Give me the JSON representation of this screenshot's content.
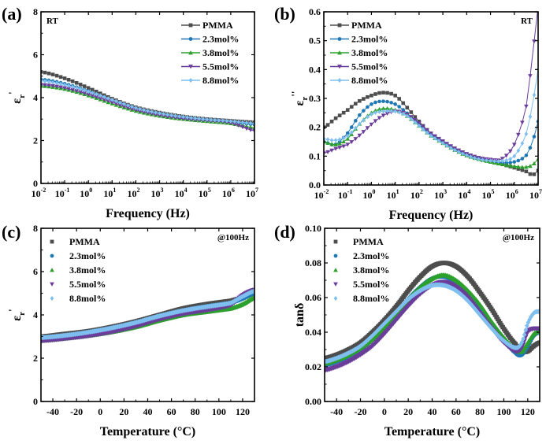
{
  "chart_data": [
    {
      "id": "a",
      "type": "line",
      "panel_label": "(a)",
      "annotation": "RT",
      "annotation_position": "top-left",
      "xlabel": "Frequency (Hz)",
      "ylabel": "ε_r'",
      "xscale": "log",
      "xlim": [
        0.01,
        10000000
      ],
      "ylim": [
        0,
        8
      ],
      "xticks": [
        "-2",
        "-1",
        "0",
        "1",
        "2",
        "3",
        "4",
        "5",
        "6",
        "7"
      ],
      "xtick_base": "10",
      "yticks": [
        0,
        2,
        4,
        6,
        8
      ],
      "legend_position": "top-right",
      "legend_style": "line-marker",
      "x": [
        0.01,
        0.1,
        1,
        10,
        100,
        1000,
        10000,
        100000,
        1000000,
        10000000
      ],
      "series": [
        {
          "name": "PMMA",
          "color": "#4d4d4d",
          "marker": "square",
          "values": [
            5.2,
            4.9,
            4.45,
            3.95,
            3.55,
            3.3,
            3.12,
            3.0,
            2.92,
            2.85
          ]
        },
        {
          "name": "2.3mol%",
          "color": "#1f77b4",
          "marker": "circle",
          "values": [
            4.85,
            4.65,
            4.3,
            3.88,
            3.5,
            3.25,
            3.08,
            2.97,
            2.87,
            2.75
          ]
        },
        {
          "name": "3.8mol%",
          "color": "#2ca02c",
          "marker": "triangle-up",
          "values": [
            4.55,
            4.4,
            4.1,
            3.72,
            3.38,
            3.15,
            3.0,
            2.9,
            2.8,
            2.6
          ]
        },
        {
          "name": "5.5mol%",
          "color": "#6a3d9a",
          "marker": "triangle-down",
          "values": [
            4.6,
            4.45,
            4.15,
            3.78,
            3.42,
            3.18,
            3.02,
            2.92,
            2.82,
            2.45
          ]
        },
        {
          "name": "8.8mol%",
          "color": "#7fbfef",
          "marker": "diamond",
          "values": [
            4.78,
            4.6,
            4.28,
            3.9,
            3.52,
            3.27,
            3.1,
            2.98,
            2.9,
            2.8
          ]
        }
      ]
    },
    {
      "id": "b",
      "type": "line",
      "panel_label": "(b)",
      "annotation": "RT",
      "annotation_position": "top-right",
      "xlabel": "Frequency (Hz)",
      "ylabel": "ε_r''",
      "xscale": "log",
      "xlim": [
        0.01,
        10000000
      ],
      "ylim": [
        0,
        0.6
      ],
      "xticks": [
        "-2",
        "-1",
        "0",
        "1",
        "2",
        "3",
        "4",
        "5",
        "6",
        "7"
      ],
      "xtick_base": "10",
      "yticks": [
        "0.0",
        "0.1",
        "0.2",
        "0.3",
        "0.4",
        "0.5",
        "0.6"
      ],
      "legend_position": "top-left",
      "legend_style": "line-marker",
      "x": [
        0.01,
        0.03,
        0.1,
        0.3,
        1,
        3,
        10,
        30,
        100,
        300,
        1000,
        3000,
        10000,
        30000,
        100000,
        300000,
        1000000,
        3000000,
        6000000,
        10000000
      ],
      "series": [
        {
          "name": "PMMA",
          "color": "#4d4d4d",
          "marker": "square",
          "values": [
            0.2,
            0.23,
            0.26,
            0.29,
            0.31,
            0.32,
            0.31,
            0.27,
            0.22,
            0.18,
            0.15,
            0.125,
            0.105,
            0.092,
            0.082,
            0.072,
            0.06,
            0.048,
            0.035,
            0.05
          ]
        },
        {
          "name": "2.3mol%",
          "color": "#1f77b4",
          "marker": "circle",
          "values": [
            0.15,
            0.14,
            0.18,
            0.24,
            0.28,
            0.29,
            0.28,
            0.25,
            0.21,
            0.175,
            0.148,
            0.125,
            0.105,
            0.092,
            0.083,
            0.077,
            0.08,
            0.1,
            0.15,
            0.22
          ]
        },
        {
          "name": "3.8mol%",
          "color": "#2ca02c",
          "marker": "triangle-up",
          "values": [
            0.15,
            0.14,
            0.16,
            0.21,
            0.25,
            0.265,
            0.26,
            0.24,
            0.205,
            0.172,
            0.145,
            0.122,
            0.102,
            0.09,
            0.08,
            0.072,
            0.065,
            0.062,
            0.07,
            0.09
          ]
        },
        {
          "name": "5.5mol%",
          "color": "#6a3d9a",
          "marker": "triangle-down",
          "values": [
            0.11,
            0.125,
            0.14,
            0.17,
            0.21,
            0.24,
            0.255,
            0.245,
            0.215,
            0.18,
            0.152,
            0.128,
            0.108,
            0.095,
            0.088,
            0.09,
            0.14,
            0.26,
            0.45,
            0.62
          ]
        },
        {
          "name": "8.8mol%",
          "color": "#7fbfef",
          "marker": "diamond",
          "values": [
            0.16,
            0.155,
            0.17,
            0.21,
            0.245,
            0.255,
            0.255,
            0.24,
            0.205,
            0.172,
            0.145,
            0.122,
            0.103,
            0.09,
            0.084,
            0.083,
            0.1,
            0.17,
            0.28,
            0.4
          ]
        }
      ]
    },
    {
      "id": "c",
      "type": "scatter",
      "panel_label": "(c)",
      "annotation": "@100Hz",
      "annotation_position": "top-right",
      "xlabel": "Temperature (°C)",
      "ylabel": "ε_r'",
      "xlim": [
        -50,
        130
      ],
      "ylim": [
        0,
        8
      ],
      "xticks": [
        -40,
        -20,
        0,
        20,
        40,
        60,
        80,
        100,
        120
      ],
      "yticks": [
        0,
        2,
        4,
        6,
        8
      ],
      "legend_position": "top-left",
      "legend_style": "marker-only",
      "x": [
        -50,
        -30,
        -10,
        10,
        30,
        50,
        70,
        90,
        110,
        120,
        130
      ],
      "series": [
        {
          "name": "PMMA",
          "color": "#4d4d4d",
          "marker": "square",
          "values": [
            3.0,
            3.12,
            3.25,
            3.45,
            3.7,
            4.0,
            4.3,
            4.5,
            4.65,
            4.8,
            5.0
          ]
        },
        {
          "name": "2.3mol%",
          "color": "#1f77b4",
          "marker": "circle",
          "values": [
            2.95,
            3.05,
            3.2,
            3.4,
            3.65,
            3.95,
            4.2,
            4.4,
            4.55,
            4.75,
            5.0
          ]
        },
        {
          "name": "3.8mol%",
          "color": "#2ca02c",
          "marker": "triangle-up",
          "values": [
            2.82,
            2.92,
            3.05,
            3.22,
            3.45,
            3.75,
            4.0,
            4.15,
            4.3,
            4.5,
            4.8
          ]
        },
        {
          "name": "5.5mol%",
          "color": "#6a3d9a",
          "marker": "triangle-down",
          "values": [
            2.8,
            2.9,
            3.03,
            3.22,
            3.48,
            3.8,
            4.05,
            4.22,
            4.45,
            4.9,
            5.15
          ]
        },
        {
          "name": "8.8mol%",
          "color": "#7fbfef",
          "marker": "diamond",
          "values": [
            2.95,
            3.05,
            3.2,
            3.4,
            3.65,
            3.95,
            4.2,
            4.38,
            4.55,
            4.85,
            5.1
          ]
        }
      ]
    },
    {
      "id": "d",
      "type": "scatter",
      "panel_label": "(d)",
      "annotation": "@100Hz",
      "annotation_position": "top-right",
      "xlabel": "Temperature (°C)",
      "ylabel": "tanδ",
      "xlim": [
        -50,
        130
      ],
      "ylim": [
        0,
        0.1
      ],
      "xticks": [
        -40,
        -20,
        0,
        20,
        40,
        60,
        80,
        100,
        120
      ],
      "yticks": [
        "0.00",
        "0.02",
        "0.04",
        "0.06",
        "0.08",
        "0.10"
      ],
      "legend_position": "top-left",
      "legend_style": "marker-only",
      "x": [
        -50,
        -40,
        -30,
        -20,
        -10,
        0,
        10,
        20,
        30,
        40,
        50,
        60,
        70,
        80,
        90,
        100,
        110,
        115,
        120,
        125,
        130
      ],
      "series": [
        {
          "name": "PMMA",
          "color": "#4d4d4d",
          "marker": "square",
          "values": [
            0.025,
            0.027,
            0.03,
            0.034,
            0.04,
            0.047,
            0.055,
            0.064,
            0.072,
            0.078,
            0.08,
            0.078,
            0.072,
            0.063,
            0.053,
            0.042,
            0.033,
            0.029,
            0.029,
            0.032,
            0.034
          ]
        },
        {
          "name": "2.3mol%",
          "color": "#1f77b4",
          "marker": "circle",
          "values": [
            0.021,
            0.023,
            0.026,
            0.03,
            0.036,
            0.043,
            0.051,
            0.059,
            0.066,
            0.071,
            0.072,
            0.069,
            0.063,
            0.054,
            0.045,
            0.036,
            0.028,
            0.027,
            0.032,
            0.038,
            0.04
          ]
        },
        {
          "name": "3.8mol%",
          "color": "#2ca02c",
          "marker": "triangle-up",
          "values": [
            0.022,
            0.024,
            0.027,
            0.031,
            0.036,
            0.043,
            0.051,
            0.059,
            0.066,
            0.071,
            0.073,
            0.07,
            0.064,
            0.056,
            0.046,
            0.037,
            0.03,
            0.029,
            0.034,
            0.039,
            0.041
          ]
        },
        {
          "name": "5.5mol%",
          "color": "#6a3d9a",
          "marker": "triangle-down",
          "values": [
            0.018,
            0.02,
            0.023,
            0.027,
            0.032,
            0.039,
            0.047,
            0.055,
            0.062,
            0.067,
            0.069,
            0.066,
            0.06,
            0.051,
            0.042,
            0.034,
            0.029,
            0.031,
            0.04,
            0.042,
            0.042
          ]
        },
        {
          "name": "8.8mol%",
          "color": "#7fbfef",
          "marker": "diamond",
          "values": [
            0.023,
            0.025,
            0.028,
            0.032,
            0.038,
            0.045,
            0.052,
            0.059,
            0.064,
            0.067,
            0.067,
            0.064,
            0.058,
            0.05,
            0.042,
            0.035,
            0.031,
            0.034,
            0.045,
            0.051,
            0.052
          ]
        }
      ]
    }
  ]
}
